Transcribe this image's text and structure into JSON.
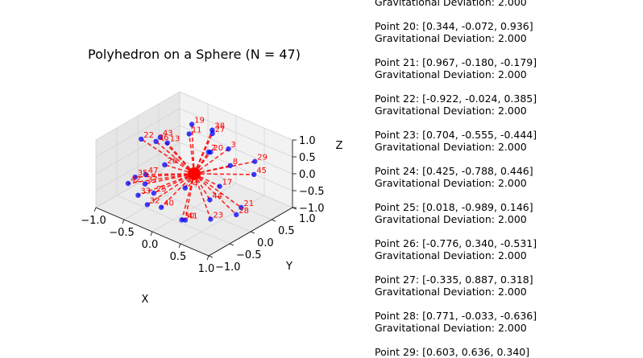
{
  "chart_data": {
    "type": "scatter",
    "title": "Polyhedron on a Sphere (N = 47)",
    "xlabel": "X",
    "ylabel": "Y",
    "zlabel": "Z",
    "xlim": [
      -1.0,
      1.0
    ],
    "ylim": [
      -1.0,
      1.0
    ],
    "zlim": [
      -1.0,
      1.0
    ],
    "x_ticks": [
      "−1.0",
      "−0.5",
      "0.0",
      "0.5",
      "1.0"
    ],
    "y_ticks": [
      "−1.0",
      "−0.5",
      "0.0",
      "0.5",
      "1.0"
    ],
    "z_ticks": [
      "−1.0",
      "−0.5",
      "0.0",
      "0.5",
      "1.0"
    ],
    "grid": true,
    "point_color": "#0000ff",
    "line_color": "#ff0000",
    "label_color": "#ff0000",
    "series": [
      {
        "points": [
          {
            "id": 2,
            "x": 0.18,
            "y": 0.1,
            "z": 0.7
          },
          {
            "id": 3,
            "x": 0.4,
            "y": 0.28,
            "z": 0.82
          },
          {
            "id": 8,
            "x": 0.55,
            "y": 0.12,
            "z": 0.55
          },
          {
            "id": 11,
            "x": -0.35,
            "y": 0.35,
            "z": 0.68
          },
          {
            "id": 13,
            "x": -0.55,
            "y": 0.1,
            "z": 0.45
          },
          {
            "id": 17,
            "x": 0.6,
            "y": -0.2,
            "z": 0.2
          },
          {
            "id": 19,
            "x": -0.45,
            "y": 0.55,
            "z": 0.75
          },
          {
            "id": 20,
            "x": 0.344,
            "y": -0.072,
            "z": 0.936
          },
          {
            "id": 21,
            "x": 0.967,
            "y": -0.18,
            "z": -0.179
          },
          {
            "id": 22,
            "x": -0.922,
            "y": -0.024,
            "z": 0.385
          },
          {
            "id": 23,
            "x": 0.704,
            "y": -0.555,
            "z": -0.444
          },
          {
            "id": 24,
            "x": 0.425,
            "y": -0.788,
            "z": 0.446
          },
          {
            "id": 25,
            "x": 0.018,
            "y": -0.989,
            "z": 0.146
          },
          {
            "id": 26,
            "x": -0.776,
            "y": 0.34,
            "z": -0.531
          },
          {
            "id": 27,
            "x": -0.335,
            "y": 0.887,
            "z": 0.318
          },
          {
            "id": 28,
            "x": 0.771,
            "y": -0.033,
            "z": -0.636
          },
          {
            "id": 29,
            "x": 0.603,
            "y": 0.636,
            "z": 0.34
          },
          {
            "id": 30,
            "x": 0.3,
            "y": -0.7,
            "z": -0.65
          },
          {
            "id": 32,
            "x": -0.2,
            "y": -0.85,
            "z": -0.45
          },
          {
            "id": 33,
            "x": -0.4,
            "y": -0.8,
            "z": -0.35
          },
          {
            "id": 35,
            "x": -0.75,
            "y": -0.4,
            "z": -0.35
          },
          {
            "id": 36,
            "x": -0.9,
            "y": 0.3,
            "z": 0.1
          },
          {
            "id": 37,
            "x": -0.5,
            "y": -0.5,
            "z": -0.3
          },
          {
            "id": 38,
            "x": -0.2,
            "y": 0.7,
            "z": 0.65
          },
          {
            "id": 40,
            "x": -0.1,
            "y": -0.65,
            "z": -0.6
          },
          {
            "id": 41,
            "x": 0.25,
            "y": -0.55,
            "z": -0.8
          },
          {
            "id": 42,
            "x": -0.8,
            "y": -0.5,
            "z": -0.5
          },
          {
            "id": 43,
            "x": -0.75,
            "y": 0.2,
            "z": 0.4
          },
          {
            "id": 44,
            "x": 0.5,
            "y": -0.3,
            "z": -0.2
          },
          {
            "id": 45,
            "x": 0.8,
            "y": 0.35,
            "z": 0.3
          },
          {
            "id": 47,
            "x": -0.6,
            "y": -0.35,
            "z": -0.2
          }
        ]
      }
    ],
    "info_lines": [
      "Gravitational Deviation: 2.000",
      "",
      "Point 20: [0.344, -0.072, 0.936]",
      "Gravitational Deviation: 2.000",
      "",
      "Point 21: [0.967, -0.180, -0.179]",
      "Gravitational Deviation: 2.000",
      "",
      "Point 22: [-0.922, -0.024, 0.385]",
      "Gravitational Deviation: 2.000",
      "",
      "Point 23: [0.704, -0.555, -0.444]",
      "Gravitational Deviation: 2.000",
      "",
      "Point 24: [0.425, -0.788, 0.446]",
      "Gravitational Deviation: 2.000",
      "",
      "Point 25: [0.018, -0.989, 0.146]",
      "Gravitational Deviation: 2.000",
      "",
      "Point 26: [-0.776, 0.340, -0.531]",
      "Gravitational Deviation: 2.000",
      "",
      "Point 27: [-0.335, 0.887, 0.318]",
      "Gravitational Deviation: 2.000",
      "",
      "Point 28: [0.771, -0.033, -0.636]",
      "Gravitational Deviation: 2.000",
      "",
      "Point 29: [0.603, 0.636, 0.340]"
    ]
  }
}
